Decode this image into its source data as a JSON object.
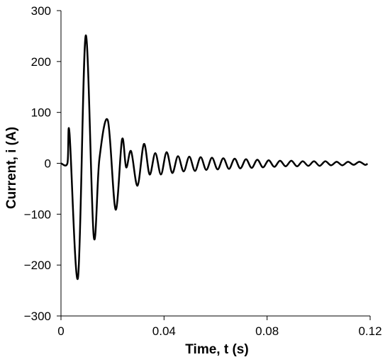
{
  "chart_data": {
    "type": "line",
    "xlabel": "Time, t (s)",
    "ylabel": "Current, i (A)",
    "x": [
      0,
      0.0025,
      0.0033,
      0.0066,
      0.0096,
      0.0127,
      0.0149,
      0.0182,
      0.0212,
      0.0237,
      0.0253,
      0.0272,
      0.0297,
      0.0322,
      0.0344,
      0.0366,
      0.0388,
      0.041,
      0.0432,
      0.0454,
      0.0476,
      0.0498,
      0.052,
      0.0542,
      0.0564,
      0.0586,
      0.0608,
      0.063,
      0.0652,
      0.0674,
      0.0696,
      0.0718,
      0.074,
      0.0762,
      0.0784,
      0.0806,
      0.0828,
      0.085,
      0.0872,
      0.0894,
      0.0916,
      0.0938,
      0.096,
      0.0982,
      0.1004,
      0.1026,
      0.1048,
      0.107,
      0.1092,
      0.1114,
      0.1136,
      0.1158,
      0.118,
      0.119
    ],
    "series": [
      {
        "color": "#000000",
        "values": [
          0,
          0,
          60,
          -225,
          251,
          -143,
          8,
          84,
          -91,
          47,
          -8,
          24,
          -44,
          38,
          -22,
          20,
          -22,
          22,
          -19,
          14,
          -16,
          13,
          -15,
          12,
          -13,
          11,
          -12,
          10,
          -11,
          9,
          -10,
          8,
          -9,
          7,
          -8,
          6,
          -7,
          5,
          -6,
          5,
          -6,
          4,
          -5,
          4,
          -5,
          4,
          -4,
          3,
          -4,
          3,
          -3,
          3,
          -3,
          -1
        ]
      }
    ],
    "xlim": [
      0,
      0.12
    ],
    "xticks": [
      0,
      0.04,
      0.08,
      0.12
    ],
    "ylim": [
      -300,
      300
    ],
    "yticks": [
      {
        "value": -300,
        "label": "−300"
      },
      {
        "value": -200,
        "label": "−200"
      },
      {
        "value": -100,
        "label": "−100"
      },
      0,
      100,
      200,
      300
    ],
    "grid": false
  }
}
